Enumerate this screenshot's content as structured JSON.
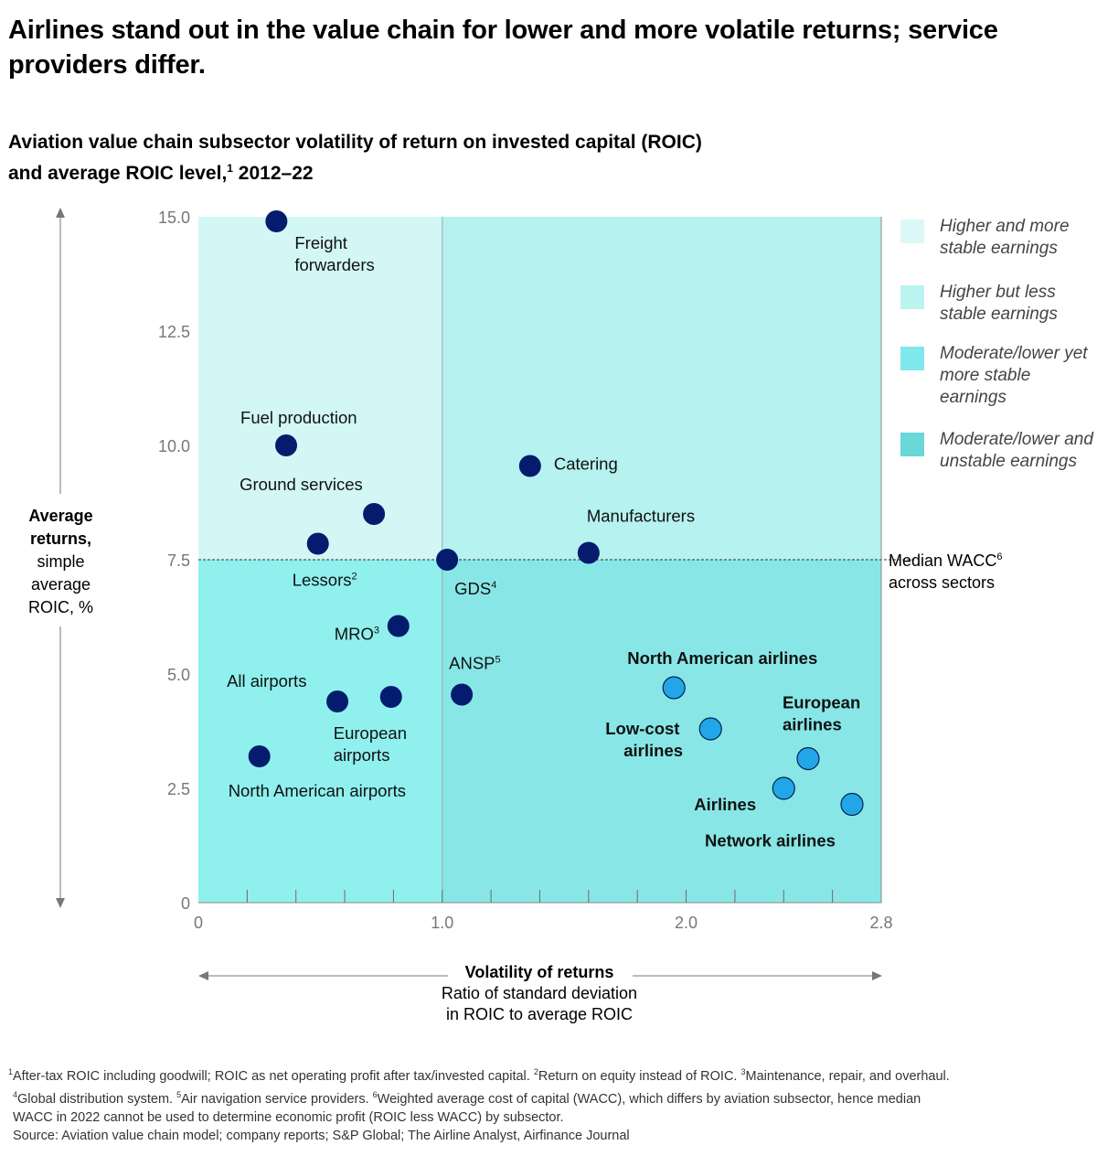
{
  "title": "Airlines stand out in the value chain for lower and more volatile returns; service providers differ.",
  "subtitle_line1": "Aviation value chain subsector volatility of return on invested capital (ROIC)",
  "subtitle_line2_pre": "and average ROIC level,",
  "subtitle_line2_sup": "1",
  "subtitle_line2_post": " 2012–22",
  "legend": [
    {
      "label": "Higher and more stable earnings",
      "color": "#dcf8f6"
    },
    {
      "label": "Higher but less stable earnings",
      "color": "#baf3f0"
    },
    {
      "label": "Moderate/lower yet more stable earnings",
      "color": "#7fe8ec"
    },
    {
      "label": "Moderate/lower and unstable earnings",
      "color": "#6ad7d9"
    }
  ],
  "wacc_label": {
    "line1": "Median WACC",
    "sup": "6",
    "line2": "across sectors"
  },
  "y_axis_label": {
    "bold": "Average returns,",
    "rest": "simple average ROIC, %"
  },
  "x_axis_label": {
    "bold": "Volatility of returns",
    "rest_line1": "Ratio of standard deviation",
    "rest_line2": "in ROIC to average ROIC"
  },
  "colors": {
    "dark_point": "#051c6e",
    "light_point": "#22a6e8",
    "q_top_left": "#d2f7f4",
    "q_top_right": "#b6f2ef",
    "q_bottom_left": "#8ff0ed",
    "q_bottom_right": "#88e7e6"
  },
  "chart_data": {
    "type": "scatter",
    "title": "Aviation value chain subsector volatility of return on invested capital (ROIC) and average ROIC level, 2012–22",
    "xlabel": "Volatility of returns — Ratio of standard deviation in ROIC to average ROIC",
    "ylabel": "Average returns, simple average ROIC, %",
    "xlim": [
      0,
      2.8
    ],
    "ylim": [
      0,
      15
    ],
    "x_ticks": [
      {
        "value": 0,
        "label": "0"
      },
      {
        "value": 1.0,
        "label": "1.0"
      },
      {
        "value": 2.0,
        "label": "2.0"
      },
      {
        "value": 2.8,
        "label": "2.8"
      }
    ],
    "x_minor_step": 0.2,
    "y_ticks": [
      {
        "value": 0,
        "label": "0"
      },
      {
        "value": 2.5,
        "label": "2.5"
      },
      {
        "value": 5.0,
        "label": "5.0"
      },
      {
        "value": 7.5,
        "label": "7.5"
      },
      {
        "value": 10.0,
        "label": "10.0"
      },
      {
        "value": 12.5,
        "label": "12.5"
      },
      {
        "value": 15.0,
        "label": "15.0"
      }
    ],
    "quadrant_split": {
      "x": 1.0,
      "y": 7.5
    },
    "reference_line": {
      "y": 7.5,
      "label": "Median WACC across sectors",
      "style": "dashed"
    },
    "legend_position": "right",
    "grid": false,
    "points": [
      {
        "label": "Freight forwarders",
        "x": 0.32,
        "y": 14.9,
        "group": "non-airline",
        "sup": ""
      },
      {
        "label": "Fuel production",
        "x": 0.36,
        "y": 10.0,
        "group": "non-airline",
        "sup": ""
      },
      {
        "label": "Ground services",
        "x": 0.72,
        "y": 8.5,
        "group": "non-airline",
        "sup": ""
      },
      {
        "label": "Lessors",
        "x": 0.49,
        "y": 7.85,
        "group": "non-airline",
        "sup": "2"
      },
      {
        "label": "GDS",
        "x": 1.02,
        "y": 7.5,
        "group": "non-airline",
        "sup": "4"
      },
      {
        "label": "Catering",
        "x": 1.36,
        "y": 9.55,
        "group": "non-airline",
        "sup": ""
      },
      {
        "label": "Manufacturers",
        "x": 1.6,
        "y": 7.65,
        "group": "non-airline",
        "sup": ""
      },
      {
        "label": "MRO",
        "x": 0.82,
        "y": 6.05,
        "group": "non-airline",
        "sup": "3"
      },
      {
        "label": "All airports",
        "x": 0.57,
        "y": 4.4,
        "group": "non-airline",
        "sup": ""
      },
      {
        "label": "European airports",
        "x": 0.79,
        "y": 4.5,
        "group": "non-airline",
        "sup": ""
      },
      {
        "label": "North American airports",
        "x": 0.25,
        "y": 3.2,
        "group": "non-airline",
        "sup": ""
      },
      {
        "label": "ANSP",
        "x": 1.08,
        "y": 4.55,
        "group": "non-airline",
        "sup": "5"
      },
      {
        "label": "North American airlines",
        "x": 1.95,
        "y": 4.7,
        "group": "airline",
        "sup": ""
      },
      {
        "label": "Low-cost airlines",
        "x": 2.1,
        "y": 3.8,
        "group": "airline",
        "sup": ""
      },
      {
        "label": "European airlines",
        "x": 2.5,
        "y": 3.15,
        "group": "airline",
        "sup": ""
      },
      {
        "label": "Airlines",
        "x": 2.4,
        "y": 2.5,
        "group": "airline",
        "sup": ""
      },
      {
        "label": "Network airlines",
        "x": 2.68,
        "y": 2.15,
        "group": "airline",
        "sup": ""
      }
    ]
  },
  "footnotes": [
    {
      "sup": "1",
      "text": "After-tax ROIC including goodwill; ROIC as net operating profit after tax/invested capital. "
    },
    {
      "sup": "2",
      "text": "Return on equity instead of ROIC. "
    },
    {
      "sup": "3",
      "text": "Maintenance, repair, and overhaul."
    },
    {
      "sup": "4",
      "text": "Global distribution system. "
    },
    {
      "sup": "5",
      "text": "Air navigation service providers. "
    },
    {
      "sup": "6",
      "text": "Weighted average cost of capital (WACC), which differs by aviation subsector, hence median"
    }
  ],
  "footnote_line3": "WACC in 2022 cannot be used to determine economic profit (ROIC less WACC) by subsector.",
  "source": "Source: Aviation value chain model; company reports; S&P Global; The Airline Analyst, Airfinance Journal"
}
